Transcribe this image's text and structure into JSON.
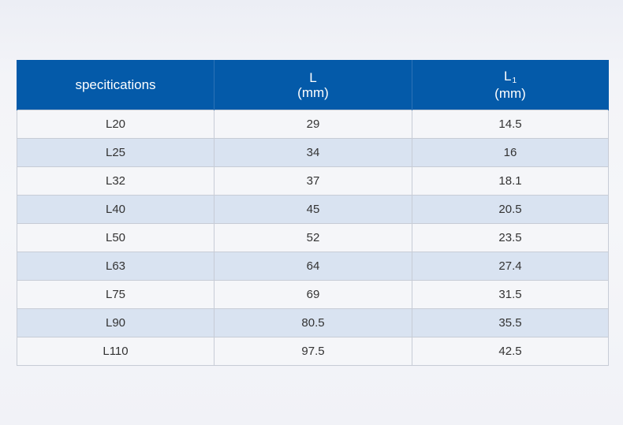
{
  "table": {
    "headers": {
      "spec": "specitications",
      "l_name": "L",
      "l_unit": "(mm)",
      "l1_name": "L",
      "l1_sub": "1",
      "l1_unit": "(mm)"
    },
    "rows": [
      {
        "spec": "L20",
        "l": "29",
        "l1": "14.5"
      },
      {
        "spec": "L25",
        "l": "34",
        "l1": "16"
      },
      {
        "spec": "L32",
        "l": "37",
        "l1": "18.1"
      },
      {
        "spec": "L40",
        "l": "45",
        "l1": "20.5"
      },
      {
        "spec": "L50",
        "l": "52",
        "l1": "23.5"
      },
      {
        "spec": "L63",
        "l": "64",
        "l1": "27.4"
      },
      {
        "spec": "L75",
        "l": "69",
        "l1": "31.5"
      },
      {
        "spec": "L90",
        "l": "80.5",
        "l1": "35.5"
      },
      {
        "spec": "L110",
        "l": "97.5",
        "l1": "42.5"
      }
    ]
  },
  "colors": {
    "header_bg": "#045aa9",
    "row_light": "#f5f6f9",
    "row_blue": "#d9e3f1"
  }
}
